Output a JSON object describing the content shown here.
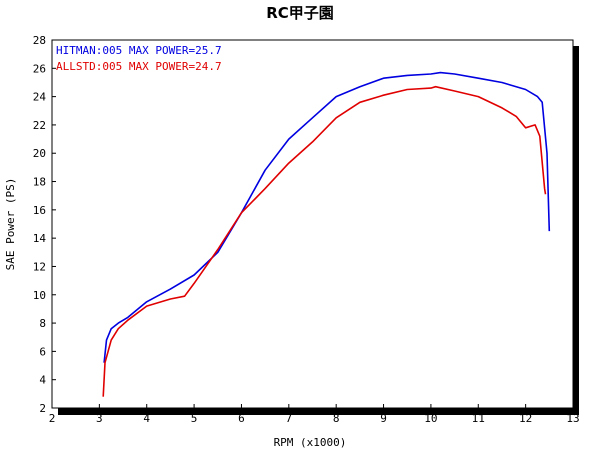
{
  "chart_data": {
    "type": "line",
    "title": "RC甲子園",
    "xlabel": "RPM (x1000)",
    "ylabel": "SAE Power (PS)",
    "xlim": [
      2,
      13
    ],
    "ylim": [
      2,
      28
    ],
    "x_ticks": [
      "2",
      "3",
      "4",
      "5",
      "6",
      "7",
      "8",
      "9",
      "10",
      "11",
      "12",
      "13"
    ],
    "y_ticks": [
      "2",
      "4",
      "6",
      "8",
      "10",
      "12",
      "14",
      "16",
      "18",
      "20",
      "22",
      "24",
      "26",
      "28"
    ],
    "grid": false,
    "legend_position": "top-left",
    "series": [
      {
        "name": "HITMAN:005   MAX POWER=25.7",
        "color": "#0000e0",
        "points": [
          [
            3.1,
            5.2
          ],
          [
            3.15,
            6.8
          ],
          [
            3.25,
            7.6
          ],
          [
            3.4,
            8.0
          ],
          [
            3.6,
            8.4
          ],
          [
            4.0,
            9.5
          ],
          [
            4.5,
            10.4
          ],
          [
            5.0,
            11.4
          ],
          [
            5.5,
            13.0
          ],
          [
            6.0,
            15.8
          ],
          [
            6.5,
            18.8
          ],
          [
            7.0,
            21.0
          ],
          [
            7.5,
            22.5
          ],
          [
            8.0,
            24.0
          ],
          [
            8.5,
            24.7
          ],
          [
            9.0,
            25.3
          ],
          [
            9.5,
            25.5
          ],
          [
            10.0,
            25.6
          ],
          [
            10.2,
            25.7
          ],
          [
            10.5,
            25.6
          ],
          [
            11.0,
            25.3
          ],
          [
            11.5,
            25.0
          ],
          [
            12.0,
            24.5
          ],
          [
            12.25,
            24.0
          ],
          [
            12.35,
            23.6
          ],
          [
            12.45,
            20.0
          ],
          [
            12.5,
            14.5
          ]
        ]
      },
      {
        "name": "ALLSTD:005   MAX POWER=24.7",
        "color": "#e00000",
        "points": [
          [
            3.08,
            2.8
          ],
          [
            3.12,
            5.2
          ],
          [
            3.25,
            6.8
          ],
          [
            3.4,
            7.6
          ],
          [
            3.6,
            8.2
          ],
          [
            4.0,
            9.2
          ],
          [
            4.5,
            9.7
          ],
          [
            4.8,
            9.9
          ],
          [
            5.0,
            10.8
          ],
          [
            5.5,
            13.2
          ],
          [
            6.0,
            15.8
          ],
          [
            6.5,
            17.5
          ],
          [
            7.0,
            19.3
          ],
          [
            7.5,
            20.8
          ],
          [
            8.0,
            22.5
          ],
          [
            8.5,
            23.6
          ],
          [
            9.0,
            24.1
          ],
          [
            9.5,
            24.5
          ],
          [
            10.0,
            24.6
          ],
          [
            10.1,
            24.7
          ],
          [
            10.5,
            24.4
          ],
          [
            11.0,
            24.0
          ],
          [
            11.5,
            23.2
          ],
          [
            11.8,
            22.6
          ],
          [
            12.0,
            21.8
          ],
          [
            12.2,
            22.0
          ],
          [
            12.3,
            21.2
          ],
          [
            12.4,
            17.5
          ],
          [
            12.42,
            17.1
          ]
        ]
      }
    ]
  }
}
